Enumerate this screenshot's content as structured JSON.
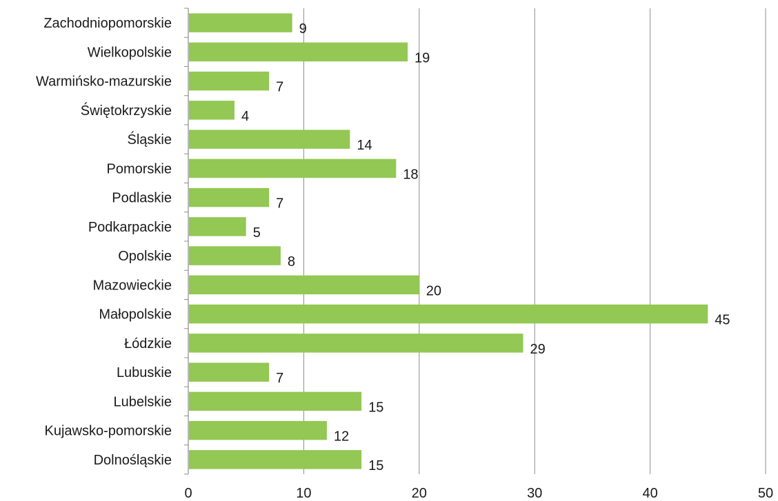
{
  "chart_data": {
    "type": "bar",
    "orientation": "horizontal",
    "title": "",
    "xlabel": "",
    "ylabel": "",
    "categories": [
      "Zachodniopomorskie",
      "Wielkopolskie",
      "Warmińsko-mazurskie",
      "Świętokrzyskie",
      "Śląskie",
      "Pomorskie",
      "Podlaskie",
      "Podkarpackie",
      "Opolskie",
      "Mazowieckie",
      "Małopolskie",
      "Łódzkie",
      "Lubuskie",
      "Lubelskie",
      "Kujawsko-pomorskie",
      "Dolnośląskie"
    ],
    "values": [
      9,
      19,
      7,
      4,
      14,
      18,
      7,
      5,
      8,
      20,
      45,
      29,
      7,
      15,
      12,
      15
    ],
    "xlim": [
      0,
      50
    ],
    "xticks": [
      0,
      10,
      20,
      30,
      40,
      50
    ],
    "grid": "vertical",
    "legend": "none",
    "colors": {
      "bar": "#92c853",
      "grid": "#8c8c8c",
      "axis": "#8c8c8c",
      "text": "#1a1a1a"
    }
  }
}
